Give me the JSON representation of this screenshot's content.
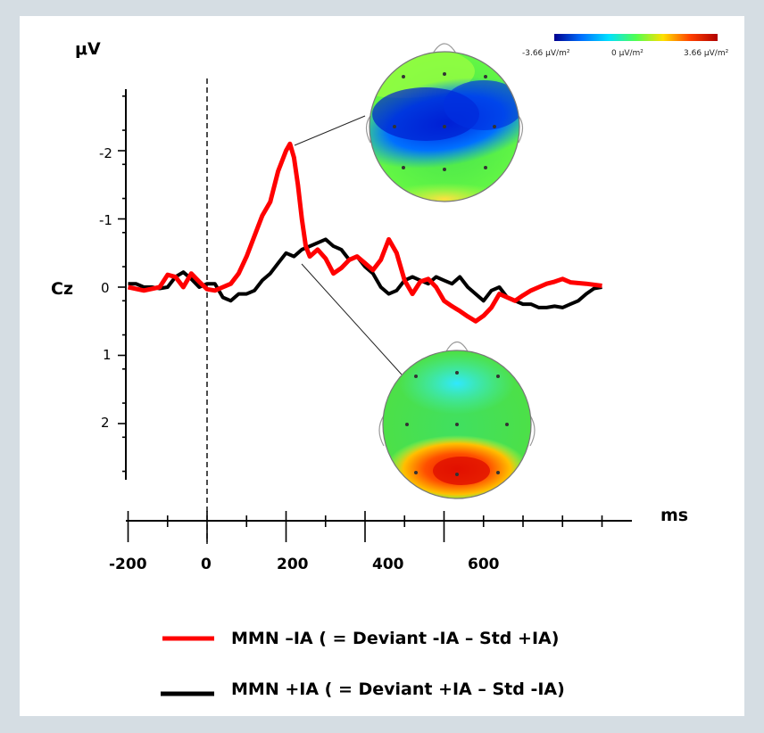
{
  "chart_data": {
    "type": "line",
    "electrode_label": "Cz",
    "ylabel": "μV",
    "xlabel": "ms",
    "y_inverted": true,
    "ylim": [
      -3,
      3
    ],
    "xlim": [
      -200,
      1050
    ],
    "x_tick_labels": [
      "-200",
      "0",
      "200",
      "400",
      "600"
    ],
    "y_tick_labels": [
      "-2",
      "-1",
      "0",
      "1",
      "2"
    ],
    "stimulus_onset_ms": 0,
    "series": [
      {
        "name": "MMN –IA ( = Deviant -IA – Std +IA)",
        "color": "#ff0000",
        "x": [
          -200,
          -160,
          -120,
          -100,
          -80,
          -60,
          -40,
          -20,
          0,
          20,
          40,
          60,
          80,
          100,
          120,
          140,
          160,
          180,
          200,
          210,
          220,
          230,
          240,
          250,
          260,
          280,
          300,
          320,
          340,
          360,
          380,
          400,
          420,
          440,
          460,
          480,
          500,
          520,
          540,
          560,
          580,
          600,
          620,
          640,
          660,
          680,
          700,
          720,
          740,
          760,
          780,
          800,
          820,
          840,
          860,
          880,
          900,
          920,
          960,
          1000
        ],
        "values": [
          0.0,
          0.05,
          0.0,
          -0.18,
          -0.15,
          0.0,
          -0.2,
          -0.08,
          0.03,
          0.05,
          0.0,
          -0.05,
          -0.2,
          -0.45,
          -0.75,
          -1.05,
          -1.25,
          -1.7,
          -2.0,
          -2.1,
          -1.9,
          -1.5,
          -1.0,
          -0.6,
          -0.45,
          -0.55,
          -0.42,
          -0.2,
          -0.28,
          -0.4,
          -0.45,
          -0.35,
          -0.25,
          -0.4,
          -0.7,
          -0.5,
          -0.1,
          0.1,
          -0.08,
          -0.12,
          0.0,
          0.2,
          0.28,
          0.35,
          0.43,
          0.5,
          0.42,
          0.3,
          0.1,
          0.15,
          0.2,
          0.12,
          0.05,
          0.0,
          -0.05,
          -0.08,
          -0.12,
          -0.07,
          -0.05,
          -0.02
        ]
      },
      {
        "name": "MMN +IA ( = Deviant +IA – Std -IA)",
        "color": "#000000",
        "x": [
          -200,
          -180,
          -160,
          -140,
          -120,
          -100,
          -80,
          -60,
          -40,
          -20,
          0,
          20,
          40,
          60,
          80,
          100,
          120,
          140,
          160,
          180,
          200,
          220,
          240,
          260,
          280,
          300,
          320,
          340,
          360,
          380,
          400,
          420,
          440,
          460,
          480,
          500,
          520,
          540,
          560,
          580,
          600,
          620,
          640,
          660,
          680,
          700,
          720,
          740,
          760,
          780,
          800,
          820,
          840,
          860,
          880,
          900,
          920,
          940,
          960,
          980,
          1000
        ],
        "values": [
          -0.05,
          -0.05,
          0.0,
          0.0,
          0.02,
          0.0,
          -0.15,
          -0.22,
          -0.12,
          0.0,
          -0.05,
          -0.05,
          0.15,
          0.2,
          0.1,
          0.1,
          0.05,
          -0.1,
          -0.2,
          -0.35,
          -0.5,
          -0.45,
          -0.55,
          -0.6,
          -0.65,
          -0.7,
          -0.6,
          -0.55,
          -0.4,
          -0.45,
          -0.3,
          -0.2,
          0.0,
          0.1,
          0.05,
          -0.1,
          -0.15,
          -0.1,
          -0.05,
          -0.15,
          -0.1,
          -0.05,
          -0.15,
          0.0,
          0.1,
          0.2,
          0.05,
          0.0,
          0.15,
          0.2,
          0.25,
          0.25,
          0.3,
          0.3,
          0.28,
          0.3,
          0.25,
          0.2,
          0.1,
          0.02,
          0.0
        ]
      }
    ],
    "colorbar": {
      "min_label": "-3.66 μV/m²",
      "mid_label": "0 μV/m²",
      "max_label": "3.66 μV/m²",
      "colors": [
        "#00008f",
        "#0070ff",
        "#00e0ff",
        "#50ff50",
        "#ffe000",
        "#ff4000",
        "#b00000"
      ]
    },
    "topomaps": [
      {
        "id": "upper",
        "links_to_ms": 180,
        "pattern": "blue-frontal"
      },
      {
        "id": "lower",
        "links_to_ms": 200,
        "pattern": "red-posterior"
      }
    ]
  }
}
